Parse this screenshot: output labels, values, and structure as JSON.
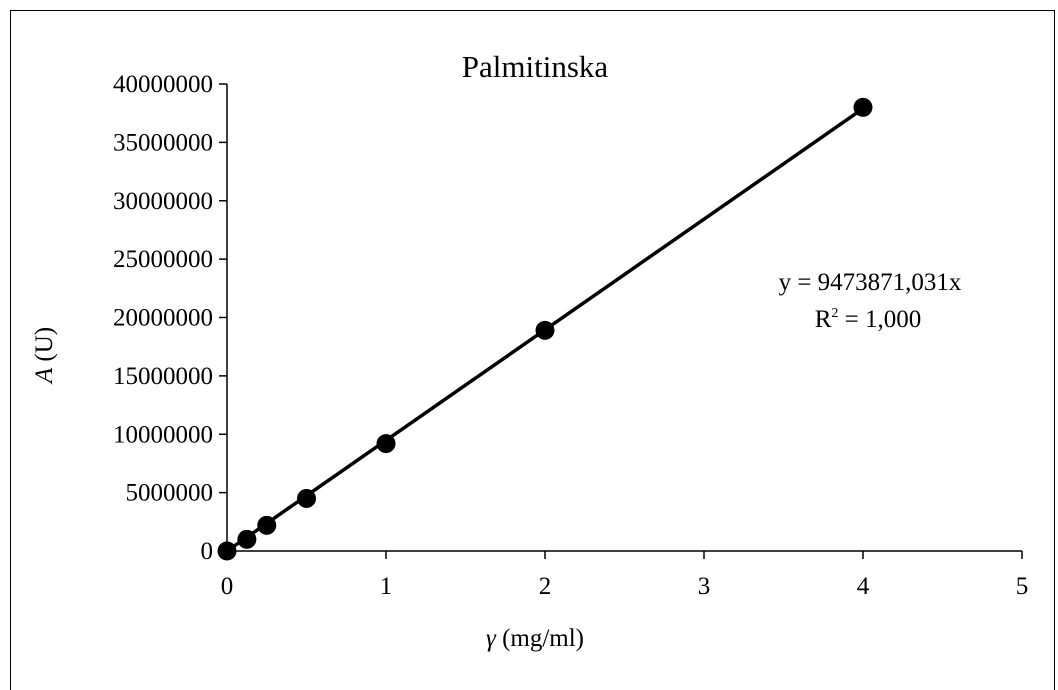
{
  "chart_data": {
    "type": "scatter",
    "title": "Palmitinska",
    "xlabel_var": "γ",
    "xlabel_unit": " (mg/ml)",
    "ylabel_var": "A",
    "ylabel_unit": " (U)",
    "xlim": [
      0,
      5
    ],
    "ylim": [
      0,
      40000000
    ],
    "x_ticks": [
      0,
      1,
      2,
      3,
      4,
      5
    ],
    "y_ticks": [
      0,
      5000000,
      10000000,
      15000000,
      20000000,
      25000000,
      30000000,
      35000000,
      40000000
    ],
    "grid": false,
    "legend": false,
    "series": [
      {
        "x": [
          0,
          0.125,
          0.25,
          0.5,
          1,
          2,
          4
        ],
        "y": [
          0,
          1000000,
          2200000,
          4500000,
          9200000,
          18900000,
          38000000
        ]
      }
    ],
    "trendline": {
      "type": "linear",
      "slope": 9473871.031,
      "intercept": 0,
      "x_range": [
        0,
        4
      ]
    },
    "annotations": {
      "equation": "y = 9473871,031x",
      "r2_prefix": "R",
      "r2_sup": "2",
      "r2_suffix": " = 1,000"
    },
    "colors": {
      "marker": "#000000",
      "line": "#000000"
    }
  }
}
